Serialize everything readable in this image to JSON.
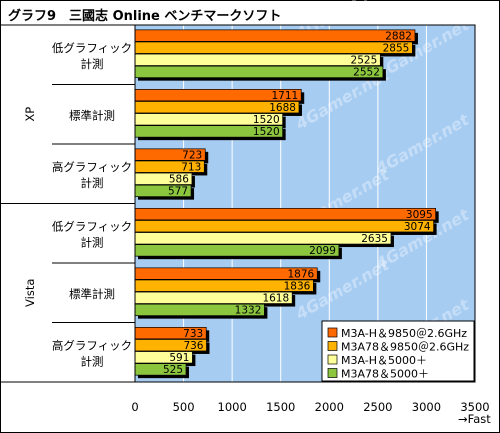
{
  "chart_data": {
    "type": "bar",
    "orientation": "horizontal",
    "title": "グラフ9　三國志 Online ベンチマークソフト",
    "xlabel": "→Fast",
    "xlim": [
      0,
      3500
    ],
    "xticks": [
      0,
      500,
      1000,
      1500,
      2000,
      2500,
      3000,
      3500
    ],
    "grid": true,
    "legend_position": "bottom-right",
    "groups": [
      "XP",
      "Vista"
    ],
    "categories": [
      {
        "group": "XP",
        "line1": "低グラフィック",
        "line2": "計測"
      },
      {
        "group": "XP",
        "line1": "標準計測",
        "line2": ""
      },
      {
        "group": "XP",
        "line1": "高グラフィック",
        "line2": "計測"
      },
      {
        "group": "Vista",
        "line1": "低グラフィック",
        "line2": "計測"
      },
      {
        "group": "Vista",
        "line1": "標準計測",
        "line2": ""
      },
      {
        "group": "Vista",
        "line1": "高グラフィック",
        "line2": "計測"
      }
    ],
    "series": [
      {
        "name": "M3A-H＆9850＠2.6GHz",
        "color": "#ff6a00",
        "values": [
          2882,
          1711,
          723,
          3095,
          1876,
          733
        ]
      },
      {
        "name": "M3A78＆9850＠2.6GHz",
        "color": "#ffb300",
        "values": [
          2855,
          1688,
          713,
          3074,
          1836,
          736
        ]
      },
      {
        "name": "M3A-H＆5000＋",
        "color": "#ffff99",
        "values": [
          2525,
          1520,
          586,
          2635,
          1618,
          591
        ]
      },
      {
        "name": "M3A78＆5000＋",
        "color": "#8cc63f",
        "values": [
          2552,
          1520,
          577,
          2099,
          1332,
          525
        ]
      }
    ],
    "colors": {
      "plot_background": "#a6ccf2",
      "grid": "#ffffff"
    },
    "watermark": "4Gamer.net"
  }
}
